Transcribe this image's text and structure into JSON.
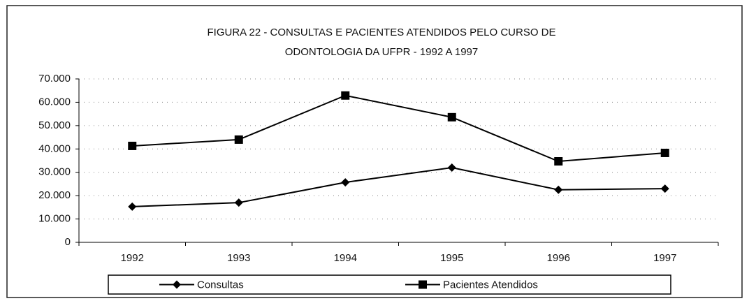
{
  "chart_data": {
    "type": "line",
    "title": "FIGURA 22 - CONSULTAS E PACIENTES ATENDIDOS PELO CURSO DE",
    "subtitle": "ODONTOLOGIA DA UFPR - 1992 A 1997",
    "categories": [
      "1992",
      "1993",
      "1994",
      "1995",
      "1996",
      "1997"
    ],
    "series": [
      {
        "name": "Consultas",
        "color": "#000000",
        "marker": "diamond",
        "values": [
          15300,
          17000,
          25700,
          32000,
          22500,
          23000
        ]
      },
      {
        "name": "Pacientes Atendidos",
        "color": "#000000",
        "marker": "square",
        "values": [
          41300,
          44000,
          62900,
          53600,
          34700,
          38300
        ]
      }
    ],
    "ylim": [
      0,
      70000
    ],
    "yticks": [
      0,
      {
        "value": 10000,
        "label": "10.000"
      },
      {
        "value": 20000,
        "label": "20.000"
      },
      {
        "value": 30000,
        "label": "30.000"
      },
      {
        "value": 40000,
        "label": "40.000"
      },
      {
        "value": 50000,
        "label": "50.000"
      },
      {
        "value": 60000,
        "label": "60.000"
      },
      {
        "value": 70000,
        "label": "70.000"
      }
    ],
    "grid": true,
    "legend": "bottom"
  }
}
